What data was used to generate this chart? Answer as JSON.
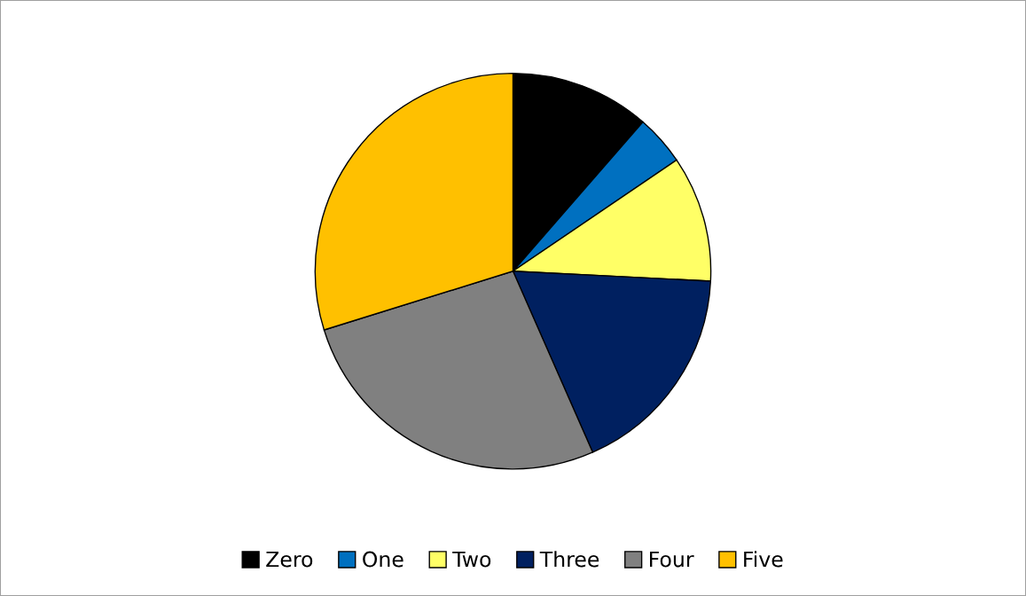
{
  "chart_data": {
    "type": "pie",
    "categories": [
      "Zero",
      "One",
      "Two",
      "Three",
      "Four",
      "Five"
    ],
    "values": [
      11.4,
      4.1,
      10.3,
      17.6,
      26.8,
      29.8
    ],
    "colors": [
      "#000000",
      "#0070c0",
      "#ffff66",
      "#002060",
      "#808080",
      "#ffc000"
    ],
    "legend": "bottom"
  }
}
